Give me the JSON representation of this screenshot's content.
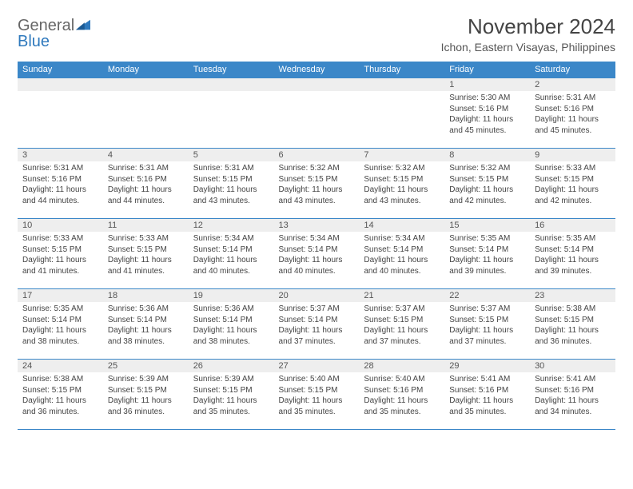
{
  "logo": {
    "text1": "General",
    "text2": "Blue"
  },
  "header": {
    "month": "November 2024",
    "location": "Ichon, Eastern Visayas, Philippines"
  },
  "colors": {
    "header_bg": "#3b87c8",
    "row_border": "#3b87c8",
    "daynum_bg": "#eeeeee",
    "text": "#444444",
    "logo_gray": "#666666",
    "logo_blue": "#2f79bd"
  },
  "weekdays": [
    "Sunday",
    "Monday",
    "Tuesday",
    "Wednesday",
    "Thursday",
    "Friday",
    "Saturday"
  ],
  "weeks": [
    [
      {
        "num": "",
        "lines": []
      },
      {
        "num": "",
        "lines": []
      },
      {
        "num": "",
        "lines": []
      },
      {
        "num": "",
        "lines": []
      },
      {
        "num": "",
        "lines": []
      },
      {
        "num": "1",
        "lines": [
          "Sunrise: 5:30 AM",
          "Sunset: 5:16 PM",
          "Daylight: 11 hours and 45 minutes."
        ]
      },
      {
        "num": "2",
        "lines": [
          "Sunrise: 5:31 AM",
          "Sunset: 5:16 PM",
          "Daylight: 11 hours and 45 minutes."
        ]
      }
    ],
    [
      {
        "num": "3",
        "lines": [
          "Sunrise: 5:31 AM",
          "Sunset: 5:16 PM",
          "Daylight: 11 hours and 44 minutes."
        ]
      },
      {
        "num": "4",
        "lines": [
          "Sunrise: 5:31 AM",
          "Sunset: 5:16 PM",
          "Daylight: 11 hours and 44 minutes."
        ]
      },
      {
        "num": "5",
        "lines": [
          "Sunrise: 5:31 AM",
          "Sunset: 5:15 PM",
          "Daylight: 11 hours and 43 minutes."
        ]
      },
      {
        "num": "6",
        "lines": [
          "Sunrise: 5:32 AM",
          "Sunset: 5:15 PM",
          "Daylight: 11 hours and 43 minutes."
        ]
      },
      {
        "num": "7",
        "lines": [
          "Sunrise: 5:32 AM",
          "Sunset: 5:15 PM",
          "Daylight: 11 hours and 43 minutes."
        ]
      },
      {
        "num": "8",
        "lines": [
          "Sunrise: 5:32 AM",
          "Sunset: 5:15 PM",
          "Daylight: 11 hours and 42 minutes."
        ]
      },
      {
        "num": "9",
        "lines": [
          "Sunrise: 5:33 AM",
          "Sunset: 5:15 PM",
          "Daylight: 11 hours and 42 minutes."
        ]
      }
    ],
    [
      {
        "num": "10",
        "lines": [
          "Sunrise: 5:33 AM",
          "Sunset: 5:15 PM",
          "Daylight: 11 hours and 41 minutes."
        ]
      },
      {
        "num": "11",
        "lines": [
          "Sunrise: 5:33 AM",
          "Sunset: 5:15 PM",
          "Daylight: 11 hours and 41 minutes."
        ]
      },
      {
        "num": "12",
        "lines": [
          "Sunrise: 5:34 AM",
          "Sunset: 5:14 PM",
          "Daylight: 11 hours and 40 minutes."
        ]
      },
      {
        "num": "13",
        "lines": [
          "Sunrise: 5:34 AM",
          "Sunset: 5:14 PM",
          "Daylight: 11 hours and 40 minutes."
        ]
      },
      {
        "num": "14",
        "lines": [
          "Sunrise: 5:34 AM",
          "Sunset: 5:14 PM",
          "Daylight: 11 hours and 40 minutes."
        ]
      },
      {
        "num": "15",
        "lines": [
          "Sunrise: 5:35 AM",
          "Sunset: 5:14 PM",
          "Daylight: 11 hours and 39 minutes."
        ]
      },
      {
        "num": "16",
        "lines": [
          "Sunrise: 5:35 AM",
          "Sunset: 5:14 PM",
          "Daylight: 11 hours and 39 minutes."
        ]
      }
    ],
    [
      {
        "num": "17",
        "lines": [
          "Sunrise: 5:35 AM",
          "Sunset: 5:14 PM",
          "Daylight: 11 hours and 38 minutes."
        ]
      },
      {
        "num": "18",
        "lines": [
          "Sunrise: 5:36 AM",
          "Sunset: 5:14 PM",
          "Daylight: 11 hours and 38 minutes."
        ]
      },
      {
        "num": "19",
        "lines": [
          "Sunrise: 5:36 AM",
          "Sunset: 5:14 PM",
          "Daylight: 11 hours and 38 minutes."
        ]
      },
      {
        "num": "20",
        "lines": [
          "Sunrise: 5:37 AM",
          "Sunset: 5:14 PM",
          "Daylight: 11 hours and 37 minutes."
        ]
      },
      {
        "num": "21",
        "lines": [
          "Sunrise: 5:37 AM",
          "Sunset: 5:15 PM",
          "Daylight: 11 hours and 37 minutes."
        ]
      },
      {
        "num": "22",
        "lines": [
          "Sunrise: 5:37 AM",
          "Sunset: 5:15 PM",
          "Daylight: 11 hours and 37 minutes."
        ]
      },
      {
        "num": "23",
        "lines": [
          "Sunrise: 5:38 AM",
          "Sunset: 5:15 PM",
          "Daylight: 11 hours and 36 minutes."
        ]
      }
    ],
    [
      {
        "num": "24",
        "lines": [
          "Sunrise: 5:38 AM",
          "Sunset: 5:15 PM",
          "Daylight: 11 hours and 36 minutes."
        ]
      },
      {
        "num": "25",
        "lines": [
          "Sunrise: 5:39 AM",
          "Sunset: 5:15 PM",
          "Daylight: 11 hours and 36 minutes."
        ]
      },
      {
        "num": "26",
        "lines": [
          "Sunrise: 5:39 AM",
          "Sunset: 5:15 PM",
          "Daylight: 11 hours and 35 minutes."
        ]
      },
      {
        "num": "27",
        "lines": [
          "Sunrise: 5:40 AM",
          "Sunset: 5:15 PM",
          "Daylight: 11 hours and 35 minutes."
        ]
      },
      {
        "num": "28",
        "lines": [
          "Sunrise: 5:40 AM",
          "Sunset: 5:16 PM",
          "Daylight: 11 hours and 35 minutes."
        ]
      },
      {
        "num": "29",
        "lines": [
          "Sunrise: 5:41 AM",
          "Sunset: 5:16 PM",
          "Daylight: 11 hours and 35 minutes."
        ]
      },
      {
        "num": "30",
        "lines": [
          "Sunrise: 5:41 AM",
          "Sunset: 5:16 PM",
          "Daylight: 11 hours and 34 minutes."
        ]
      }
    ]
  ]
}
